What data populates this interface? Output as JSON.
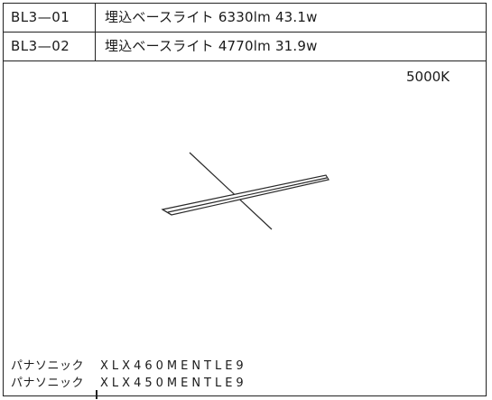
{
  "rows": [
    {
      "code": "BL3—01",
      "description": "埋込ベースライト 6330lm 43.1w"
    },
    {
      "code": "BL3—02",
      "description": "埋込ベースライト 4770lm 31.9w"
    }
  ],
  "color_temperature": "5000K",
  "manufacturers": [
    {
      "maker": "パナソニック",
      "model": "XLX460MENTLE9"
    },
    {
      "maker": "パナソニック",
      "model": "XLX450MENTLE9"
    }
  ]
}
